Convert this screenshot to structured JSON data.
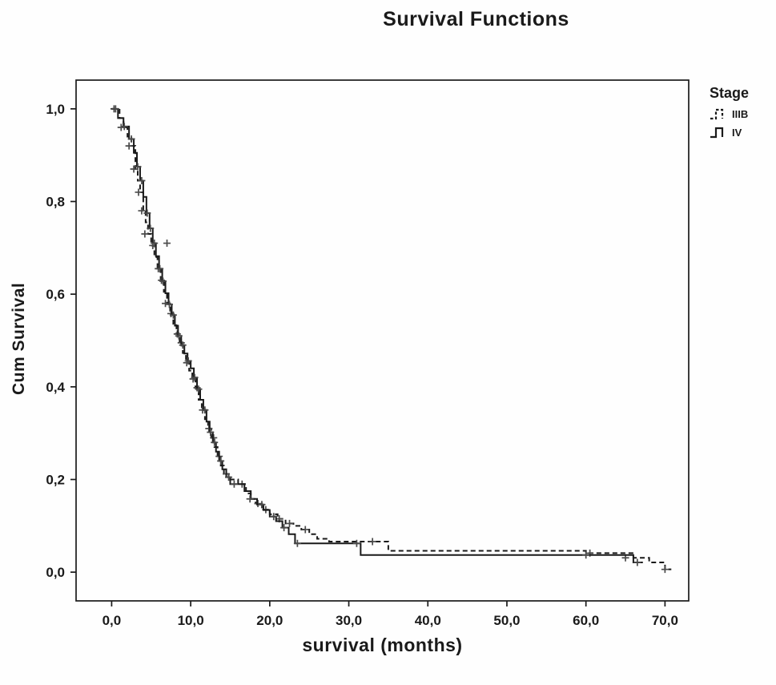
{
  "chart_data": {
    "type": "line",
    "subtype": "kaplan-meier-step",
    "title": "Survival Functions",
    "xlabel": "survival (months)",
    "ylabel": "Cum Survival",
    "xlim": [
      -4.5,
      73
    ],
    "ylim": [
      -0.062,
      1.062
    ],
    "grid": false,
    "x_ticks": {
      "values": [
        0,
        10,
        20,
        30,
        40,
        50,
        60,
        70
      ],
      "labels": [
        "0,0",
        "10,0",
        "20,0",
        "30,0",
        "40,0",
        "50,0",
        "60,0",
        "70,0"
      ]
    },
    "y_ticks": {
      "values": [
        0,
        0.2,
        0.4,
        0.6,
        0.8,
        1.0
      ],
      "labels": [
        "0,0",
        "0,2",
        "0,4",
        "0,6",
        "0,8",
        "1,0"
      ]
    },
    "legend": {
      "title": "Stage",
      "position": "top-right-outside"
    },
    "line_color": "#1a1a1a",
    "censor_color": "#4a4a4a",
    "series": [
      {
        "name": "IIIB",
        "style": "dashed",
        "color": "#1a1a1a",
        "end_x": 70.8,
        "steps": [
          [
            0,
            1.0
          ],
          [
            1,
            0.98
          ],
          [
            1.5,
            0.96
          ],
          [
            2,
            0.94
          ],
          [
            2.5,
            0.92
          ],
          [
            3,
            0.87
          ],
          [
            3.3,
            0.845
          ],
          [
            3.6,
            0.82
          ],
          [
            4,
            0.78
          ],
          [
            4.3,
            0.755
          ],
          [
            4.6,
            0.73
          ],
          [
            5,
            0.705
          ],
          [
            5.4,
            0.68
          ],
          [
            5.8,
            0.655
          ],
          [
            6.2,
            0.63
          ],
          [
            6.6,
            0.605
          ],
          [
            7,
            0.58
          ],
          [
            7.4,
            0.558
          ],
          [
            7.8,
            0.536
          ],
          [
            8.2,
            0.514
          ],
          [
            8.6,
            0.495
          ],
          [
            9,
            0.473
          ],
          [
            9.4,
            0.452
          ],
          [
            9.8,
            0.435
          ],
          [
            10.2,
            0.417
          ],
          [
            10.6,
            0.398
          ],
          [
            11,
            0.372
          ],
          [
            11.4,
            0.35
          ],
          [
            11.8,
            0.33
          ],
          [
            12.2,
            0.31
          ],
          [
            12.6,
            0.29
          ],
          [
            13,
            0.27
          ],
          [
            13.4,
            0.25
          ],
          [
            13.8,
            0.23
          ],
          [
            14.2,
            0.212
          ],
          [
            14.8,
            0.2
          ],
          [
            16,
            0.19
          ],
          [
            17,
            0.17
          ],
          [
            17.6,
            0.158
          ],
          [
            18.2,
            0.148
          ],
          [
            19,
            0.135
          ],
          [
            20,
            0.125
          ],
          [
            21,
            0.115
          ],
          [
            22,
            0.105
          ],
          [
            23,
            0.1
          ],
          [
            24,
            0.092
          ],
          [
            25,
            0.082
          ],
          [
            26,
            0.072
          ],
          [
            27.5,
            0.066
          ],
          [
            35,
            0.046
          ],
          [
            60,
            0.041
          ],
          [
            66,
            0.031
          ],
          [
            68,
            0.021
          ],
          [
            70,
            0.006
          ]
        ],
        "censored": [
          [
            0.3,
            1.0
          ],
          [
            1.2,
            0.96
          ],
          [
            2.2,
            0.92
          ],
          [
            2.8,
            0.87
          ],
          [
            3.4,
            0.82
          ],
          [
            3.8,
            0.78
          ],
          [
            4.2,
            0.73
          ],
          [
            5.2,
            0.705
          ],
          [
            5.9,
            0.655
          ],
          [
            6.3,
            0.63
          ],
          [
            6.8,
            0.58
          ],
          [
            7.5,
            0.558
          ],
          [
            8.3,
            0.514
          ],
          [
            8.8,
            0.495
          ],
          [
            9.5,
            0.452
          ],
          [
            10.3,
            0.417
          ],
          [
            10.8,
            0.398
          ],
          [
            11.5,
            0.35
          ],
          [
            12.3,
            0.31
          ],
          [
            12.9,
            0.29
          ],
          [
            13.6,
            0.25
          ],
          [
            14.5,
            0.212
          ],
          [
            16.5,
            0.19
          ],
          [
            18.5,
            0.148
          ],
          [
            19.5,
            0.135
          ],
          [
            21.2,
            0.115
          ],
          [
            22.5,
            0.105
          ],
          [
            24.5,
            0.092
          ],
          [
            33,
            0.066
          ],
          [
            60.5,
            0.041
          ],
          [
            65,
            0.031
          ],
          [
            70,
            0.006
          ]
        ]
      },
      {
        "name": "IV",
        "style": "solid",
        "color": "#1a1a1a",
        "end_x": 67.2,
        "steps": [
          [
            0,
            1.0
          ],
          [
            0.8,
            0.98
          ],
          [
            1.5,
            0.962
          ],
          [
            2.2,
            0.935
          ],
          [
            2.8,
            0.905
          ],
          [
            3.2,
            0.875
          ],
          [
            3.6,
            0.845
          ],
          [
            4,
            0.81
          ],
          [
            4.4,
            0.775
          ],
          [
            4.8,
            0.742
          ],
          [
            5.2,
            0.71
          ],
          [
            5.6,
            0.682
          ],
          [
            6,
            0.655
          ],
          [
            6.4,
            0.628
          ],
          [
            6.8,
            0.602
          ],
          [
            7.2,
            0.578
          ],
          [
            7.6,
            0.555
          ],
          [
            8,
            0.532
          ],
          [
            8.4,
            0.51
          ],
          [
            8.8,
            0.49
          ],
          [
            9.2,
            0.472
          ],
          [
            9.6,
            0.456
          ],
          [
            10,
            0.44
          ],
          [
            10.4,
            0.42
          ],
          [
            10.8,
            0.395
          ],
          [
            11.2,
            0.372
          ],
          [
            11.6,
            0.35
          ],
          [
            12,
            0.325
          ],
          [
            12.4,
            0.302
          ],
          [
            12.8,
            0.28
          ],
          [
            13.2,
            0.26
          ],
          [
            13.6,
            0.24
          ],
          [
            14,
            0.222
          ],
          [
            14.5,
            0.205
          ],
          [
            15,
            0.19
          ],
          [
            16.8,
            0.175
          ],
          [
            17.6,
            0.158
          ],
          [
            18.4,
            0.146
          ],
          [
            19.2,
            0.134
          ],
          [
            20,
            0.12
          ],
          [
            20.8,
            0.11
          ],
          [
            21.6,
            0.096
          ],
          [
            22.4,
            0.082
          ],
          [
            23.2,
            0.062
          ],
          [
            31.5,
            0.037
          ],
          [
            66,
            0.021
          ]
        ],
        "censored": [
          [
            0.5,
            1.0
          ],
          [
            1.6,
            0.962
          ],
          [
            2.5,
            0.935
          ],
          [
            3.3,
            0.875
          ],
          [
            3.8,
            0.845
          ],
          [
            4.5,
            0.775
          ],
          [
            4.9,
            0.742
          ],
          [
            5.4,
            0.71
          ],
          [
            6.1,
            0.655
          ],
          [
            6.5,
            0.628
          ],
          [
            7.0,
            0.71
          ],
          [
            7.3,
            0.578
          ],
          [
            7.8,
            0.555
          ],
          [
            8.5,
            0.51
          ],
          [
            9.0,
            0.49
          ],
          [
            9.7,
            0.456
          ],
          [
            10.5,
            0.42
          ],
          [
            11.0,
            0.395
          ],
          [
            11.8,
            0.35
          ],
          [
            12.5,
            0.302
          ],
          [
            13.0,
            0.28
          ],
          [
            13.8,
            0.24
          ],
          [
            14.8,
            0.205
          ],
          [
            15.5,
            0.19
          ],
          [
            17.5,
            0.158
          ],
          [
            19.0,
            0.146
          ],
          [
            20.5,
            0.12
          ],
          [
            21.8,
            0.096
          ],
          [
            23.5,
            0.062
          ],
          [
            31,
            0.062
          ],
          [
            60,
            0.037
          ],
          [
            66.5,
            0.021
          ]
        ]
      }
    ]
  }
}
